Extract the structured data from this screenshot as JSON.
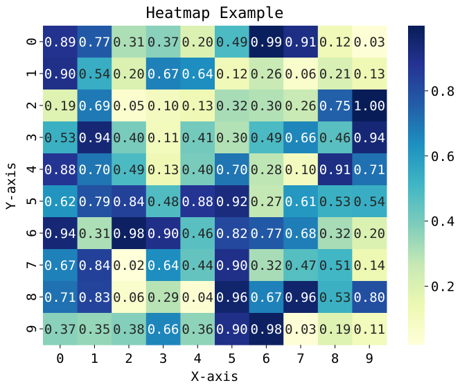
{
  "chart_data": {
    "type": "heatmap",
    "title": "Heatmap Example",
    "xlabel": "X-axis",
    "ylabel": "Y-axis",
    "x_categories": [
      "0",
      "1",
      "2",
      "3",
      "4",
      "5",
      "6",
      "7",
      "8",
      "9"
    ],
    "y_categories": [
      "0",
      "1",
      "2",
      "3",
      "4",
      "5",
      "6",
      "7",
      "8",
      "9"
    ],
    "values": [
      [
        0.89,
        0.77,
        0.31,
        0.37,
        0.2,
        0.49,
        0.99,
        0.91,
        0.12,
        0.03
      ],
      [
        0.9,
        0.54,
        0.2,
        0.67,
        0.64,
        0.12,
        0.26,
        0.06,
        0.21,
        0.13
      ],
      [
        0.19,
        0.69,
        0.05,
        0.1,
        0.13,
        0.32,
        0.3,
        0.26,
        0.75,
        1.0
      ],
      [
        0.53,
        0.94,
        0.4,
        0.11,
        0.41,
        0.3,
        0.49,
        0.66,
        0.46,
        0.94
      ],
      [
        0.88,
        0.7,
        0.49,
        0.13,
        0.4,
        0.7,
        0.28,
        0.1,
        0.91,
        0.71
      ],
      [
        0.62,
        0.79,
        0.84,
        0.48,
        0.88,
        0.92,
        0.27,
        0.61,
        0.53,
        0.54
      ],
      [
        0.94,
        0.31,
        0.98,
        0.9,
        0.46,
        0.82,
        0.77,
        0.68,
        0.32,
        0.2
      ],
      [
        0.67,
        0.84,
        0.02,
        0.64,
        0.44,
        0.9,
        0.32,
        0.47,
        0.51,
        0.14
      ],
      [
        0.71,
        0.83,
        0.06,
        0.29,
        0.04,
        0.96,
        0.67,
        0.96,
        0.53,
        0.8
      ],
      [
        0.37,
        0.35,
        0.38,
        0.66,
        0.36,
        0.9,
        0.98,
        0.03,
        0.19,
        0.11
      ]
    ],
    "value_range": [
      0.02,
      1.0
    ],
    "annotated": true,
    "annotation_format": "0.00",
    "colormap": "YlGnBu",
    "colorbar": {
      "position": "right",
      "ticks": [
        0.2,
        0.4,
        0.6,
        0.8
      ],
      "tick_labels": [
        "0.2",
        "0.4",
        "0.6",
        "0.8"
      ]
    },
    "grid": false
  }
}
